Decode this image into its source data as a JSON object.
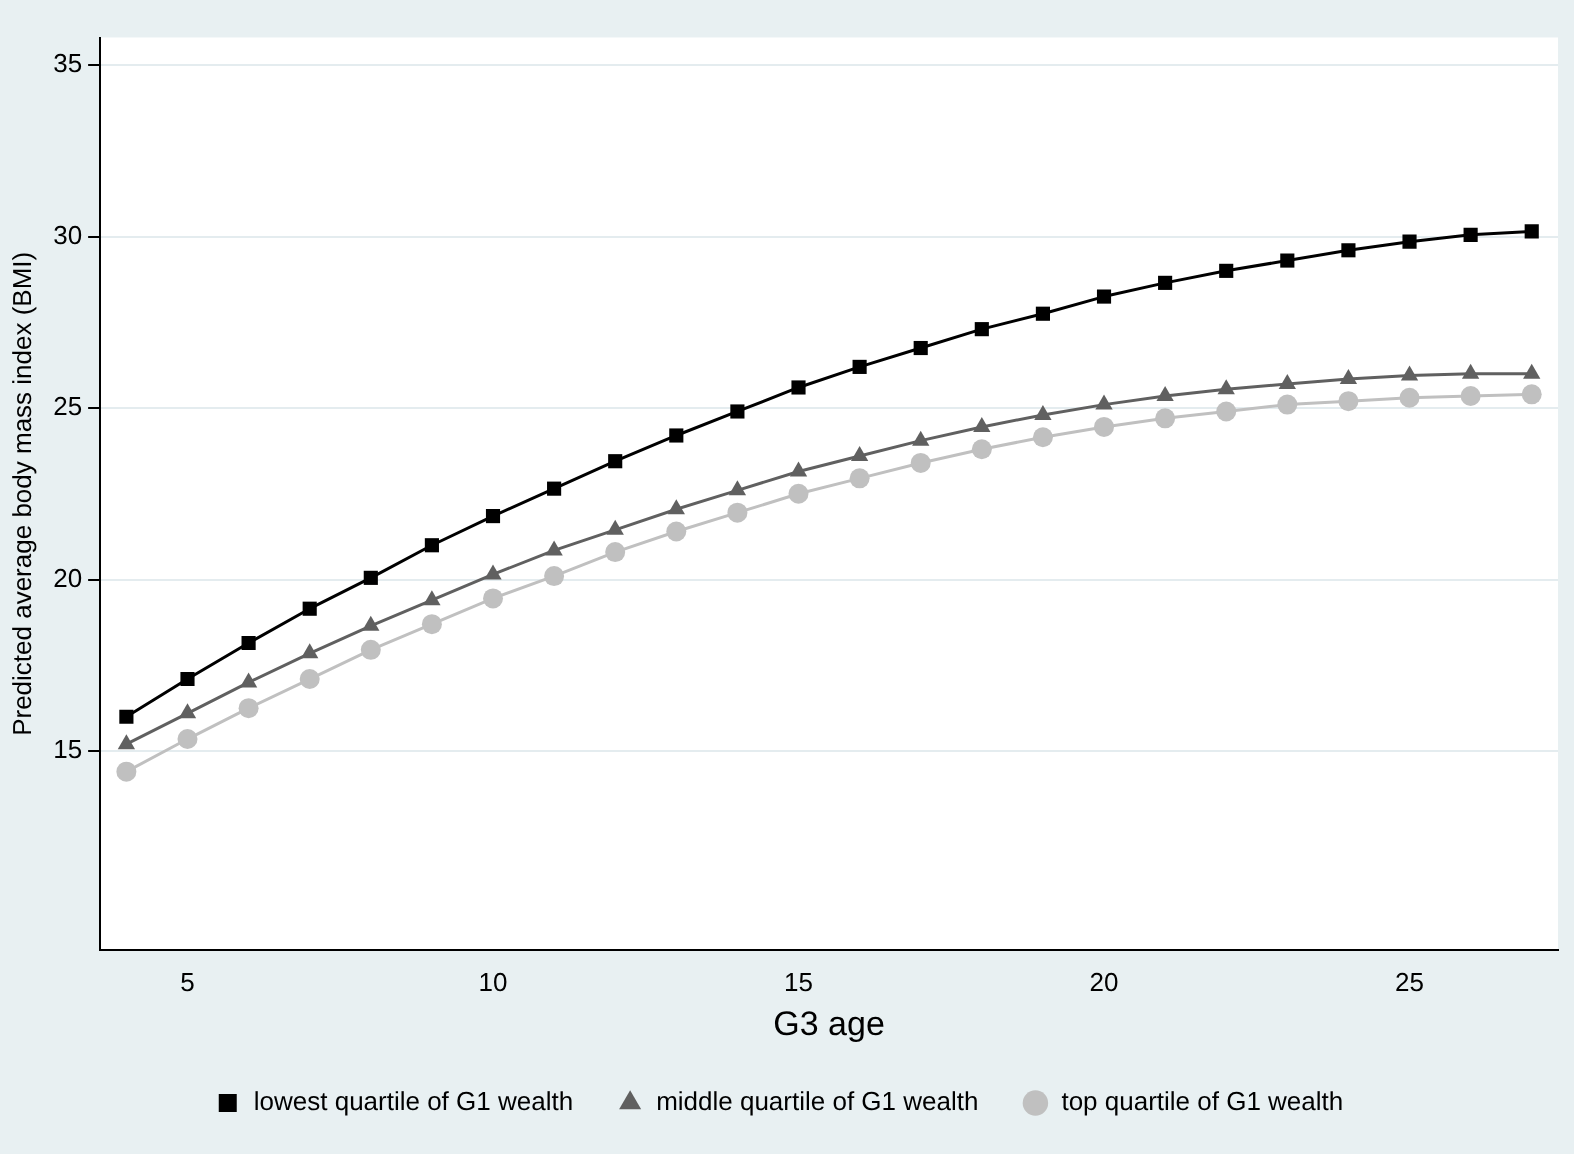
{
  "chart_data": {
    "type": "line",
    "xlabel": "G3 age",
    "ylabel": "Predicted average body mass index (BMI)",
    "x": [
      4,
      5,
      6,
      7,
      8,
      9,
      10,
      11,
      12,
      13,
      14,
      15,
      16,
      17,
      18,
      19,
      20,
      21,
      22,
      23,
      24,
      25,
      26,
      27
    ],
    "series": [
      {
        "name": "lowest quartile of G1 wealth",
        "color": "#000000",
        "marker": "square",
        "values": [
          16.0,
          17.1,
          18.15,
          19.15,
          20.05,
          21.0,
          21.85,
          22.65,
          23.45,
          24.2,
          24.9,
          25.6,
          26.2,
          26.75,
          27.3,
          27.75,
          28.25,
          28.65,
          29.0,
          29.3,
          29.6,
          29.85,
          30.05,
          30.15
        ]
      },
      {
        "name": "middle quartile of G1 wealth",
        "color": "#606060",
        "marker": "triangle",
        "values": [
          15.2,
          16.1,
          17.0,
          17.85,
          18.65,
          19.4,
          20.15,
          20.85,
          21.45,
          22.05,
          22.6,
          23.15,
          23.6,
          24.05,
          24.45,
          24.8,
          25.1,
          25.35,
          25.55,
          25.7,
          25.85,
          25.95,
          26.0,
          26.0
        ]
      },
      {
        "name": "top quartile of G1 wealth",
        "color": "#c0c0c0",
        "marker": "circle",
        "values": [
          14.4,
          15.35,
          16.25,
          17.1,
          17.95,
          18.7,
          19.45,
          20.1,
          20.8,
          21.4,
          21.95,
          22.5,
          22.95,
          23.4,
          23.8,
          24.15,
          24.45,
          24.7,
          24.9,
          25.1,
          25.2,
          25.3,
          25.35,
          25.4
        ]
      }
    ],
    "xlim": [
      3.57,
      27.43
    ],
    "xticks": [
      5,
      10,
      15,
      20,
      25
    ],
    "ylim": [
      9.2,
      35.8
    ],
    "yticks": [
      15,
      20,
      25,
      30,
      35
    ],
    "grid": "y",
    "legend": "bottom",
    "line_style": "solid"
  }
}
